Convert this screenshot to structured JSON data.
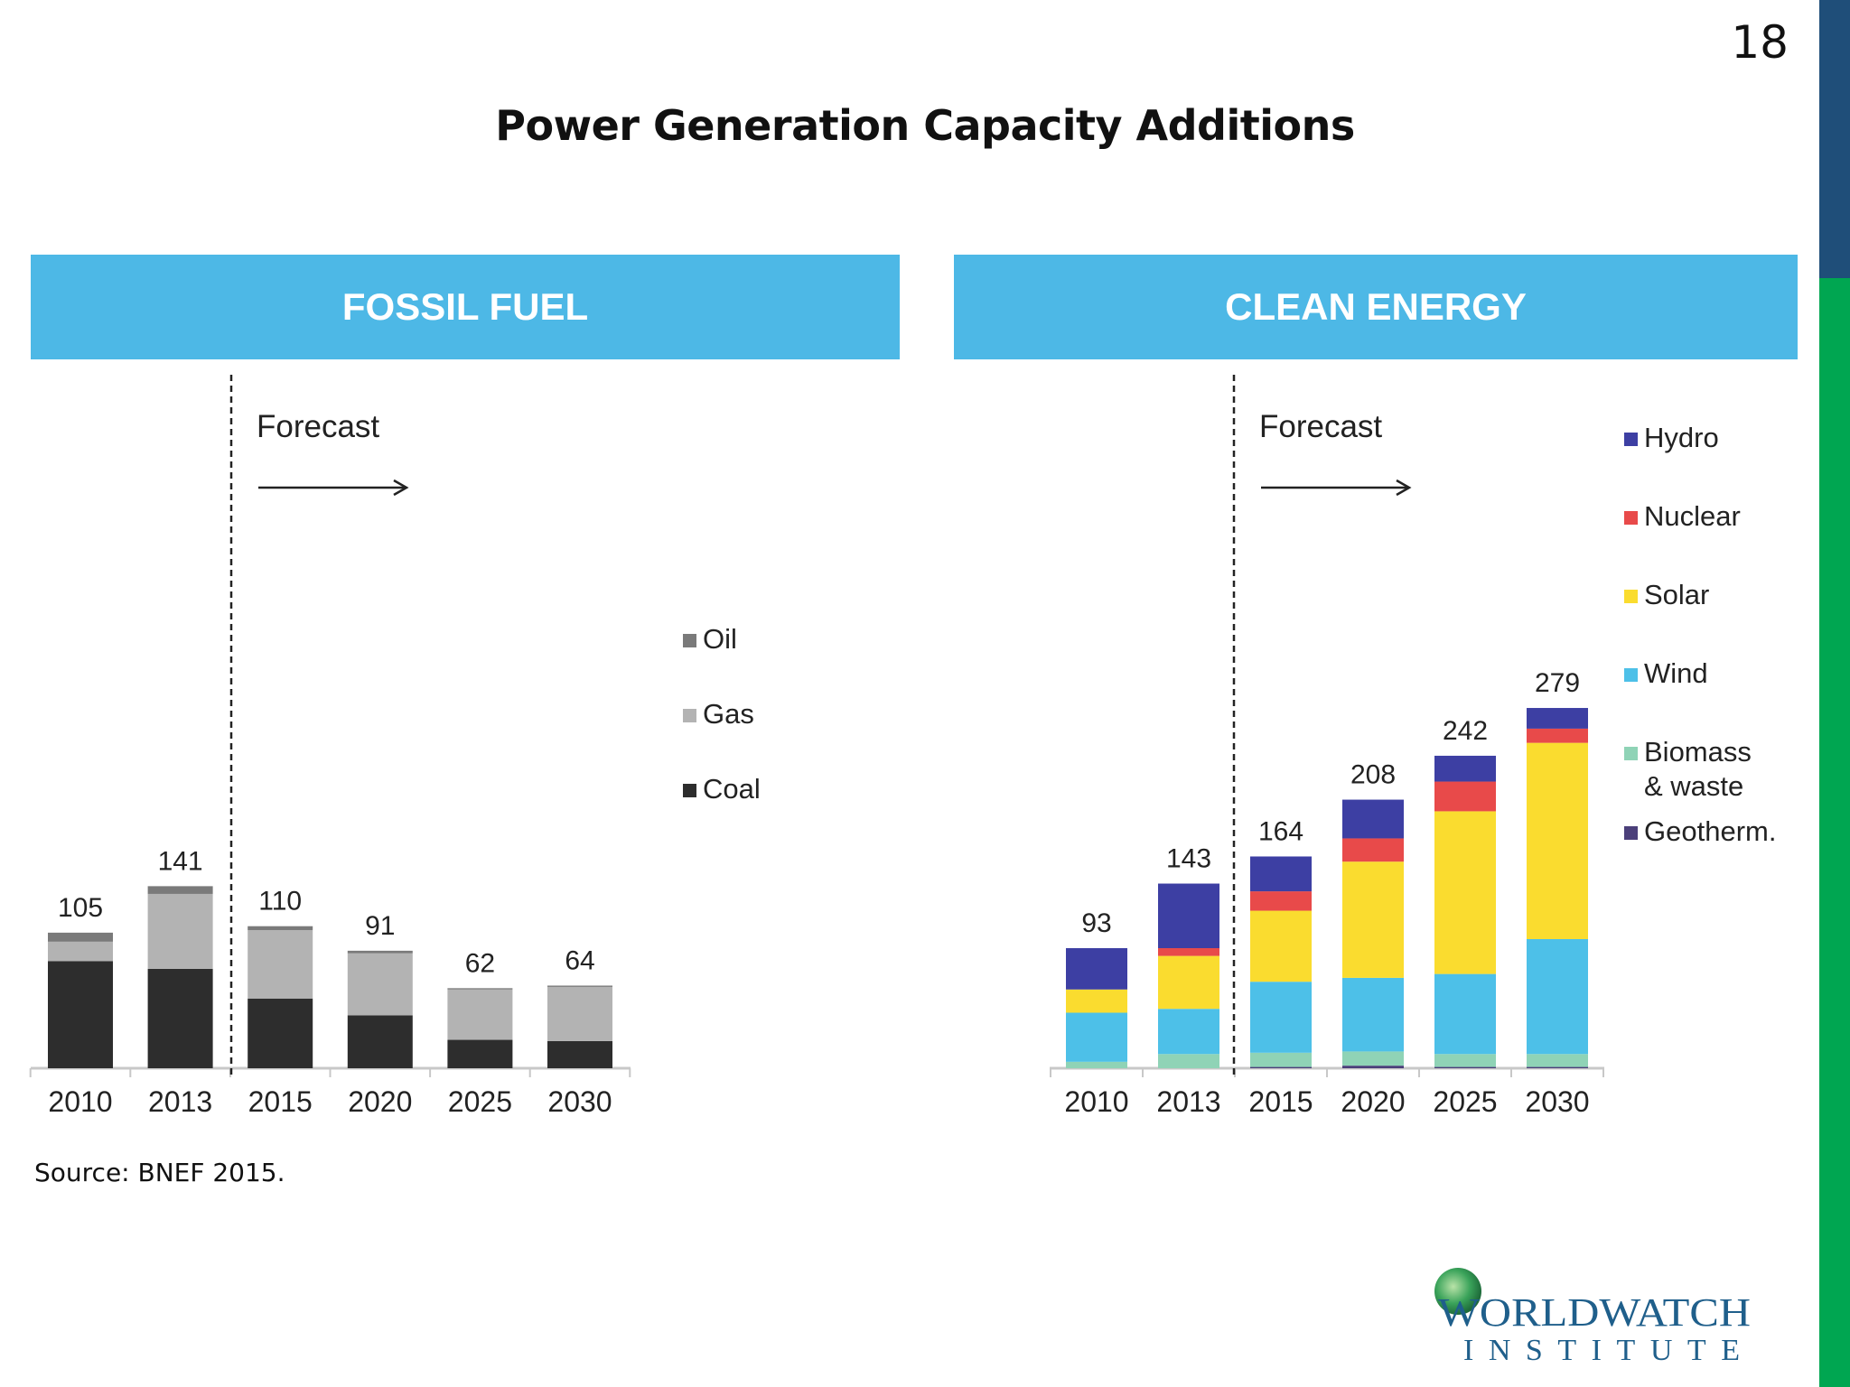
{
  "page_number": "18",
  "title": "Power Generation Capacity Additions",
  "source": "Source: BNEF 2015.",
  "logo": {
    "line1": "WORLDWATCH",
    "line2": "INSTITUTE"
  },
  "colors": {
    "header": "#4db8e6",
    "strip_top": "#1f4e79",
    "strip_bottom": "#00a651"
  },
  "chart_data": [
    {
      "type": "bar",
      "stacked": true,
      "title": "FOSSIL FUEL",
      "annotation": "Forecast",
      "forecast_starts_after": "2013",
      "categories": [
        "2010",
        "2013",
        "2015",
        "2020",
        "2025",
        "2030"
      ],
      "totals": [
        105,
        141,
        110,
        91,
        62,
        64
      ],
      "series": [
        {
          "name": "Coal",
          "color": "#2d2d2d",
          "values": [
            83,
            77,
            54,
            41,
            22,
            21
          ]
        },
        {
          "name": "Gas",
          "color": "#b3b3b3",
          "values": [
            15,
            58,
            53,
            48,
            39,
            42
          ]
        },
        {
          "name": "Oil",
          "color": "#7a7a7a",
          "values": [
            7,
            6,
            3,
            2,
            1,
            1
          ]
        }
      ],
      "legend_order": [
        "Oil",
        "Gas",
        "Coal"
      ],
      "legend": "right",
      "grid": false
    },
    {
      "type": "bar",
      "stacked": true,
      "title": "CLEAN ENERGY",
      "annotation": "Forecast",
      "forecast_starts_after": "2013",
      "categories": [
        "2010",
        "2013",
        "2015",
        "2020",
        "2025",
        "2030"
      ],
      "totals": [
        93,
        143,
        164,
        208,
        242,
        279
      ],
      "series": [
        {
          "name": "Geotherm.",
          "color": "#4b3f7a",
          "values": [
            0,
            0,
            1,
            2,
            1,
            1
          ]
        },
        {
          "name": "Biomass & waste",
          "color": "#8fd3b6",
          "values": [
            5,
            11,
            11,
            11,
            10,
            10
          ]
        },
        {
          "name": "Wind",
          "color": "#4dc0e8",
          "values": [
            38,
            35,
            55,
            57,
            62,
            89
          ]
        },
        {
          "name": "Solar",
          "color": "#fadc2f",
          "values": [
            18,
            41,
            55,
            90,
            126,
            152
          ]
        },
        {
          "name": "Nuclear",
          "color": "#e84a4a",
          "values": [
            0,
            6,
            15,
            18,
            23,
            11
          ]
        },
        {
          "name": "Hydro",
          "color": "#3d3fa3",
          "values": [
            32,
            50,
            27,
            30,
            20,
            16
          ]
        }
      ],
      "legend_order": [
        "Hydro",
        "Nuclear",
        "Solar",
        "Wind",
        "Biomass & waste",
        "Geotherm."
      ],
      "legend": "right",
      "grid": false
    }
  ]
}
